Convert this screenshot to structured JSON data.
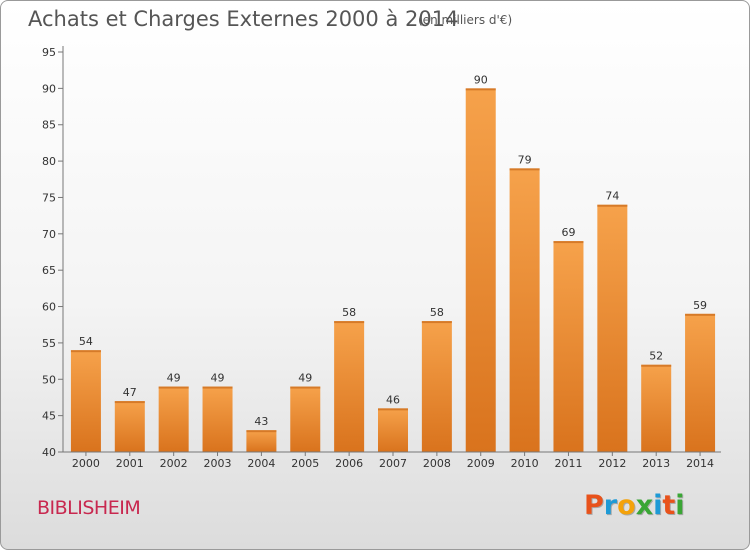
{
  "header": {
    "title": "Achats et Charges Externes 2000 à 2014",
    "unit": "(en milliers d'€)"
  },
  "footer": {
    "commune": "BIBLISHEIM",
    "logo": {
      "letters": [
        "P",
        "r",
        "o",
        "x",
        "i",
        "t",
        "i"
      ],
      "colors": [
        "#e8521b",
        "#1e9ad6",
        "#f4a20a",
        "#3aa635",
        "#1e9ad6",
        "#e8521b",
        "#3aa635"
      ]
    }
  },
  "chart_data": {
    "type": "bar",
    "title": "Achats et Charges Externes 2000 à 2014",
    "subtitle": "(en milliers d'€)",
    "categories": [
      "2000",
      "2001",
      "2002",
      "2003",
      "2004",
      "2005",
      "2006",
      "2007",
      "2008",
      "2009",
      "2010",
      "2011",
      "2012",
      "2013",
      "2014"
    ],
    "values": [
      54,
      47,
      49,
      49,
      43,
      49,
      58,
      46,
      58,
      90,
      79,
      69,
      74,
      52,
      59
    ],
    "ylim": [
      40,
      95
    ],
    "yticks": [
      40,
      45,
      50,
      55,
      60,
      65,
      70,
      75,
      80,
      85,
      90,
      95
    ],
    "grid": false,
    "colors": {
      "bar_light": "#f6a24b",
      "bar_dark": "#d9731d",
      "axis": "#777777"
    }
  }
}
